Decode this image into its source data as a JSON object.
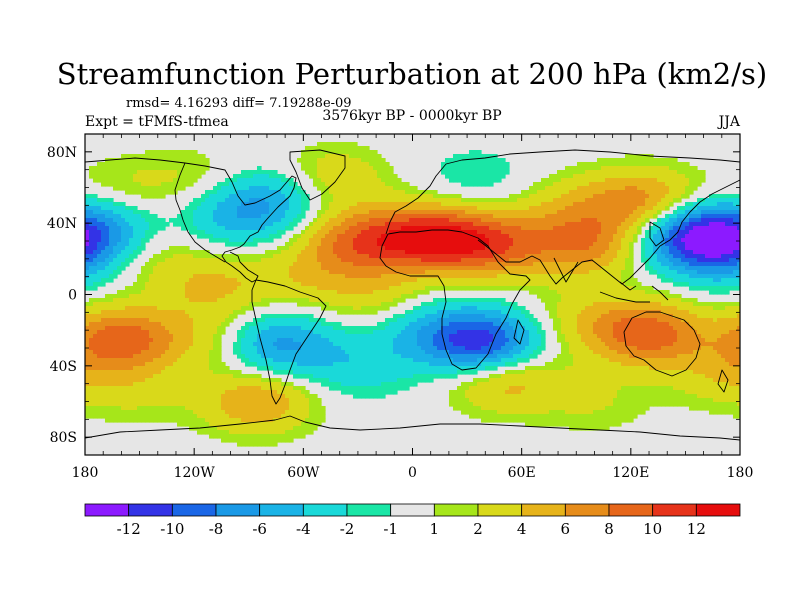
{
  "chart_data": {
    "type": "contour_map",
    "title": "Streamfunction Perturbation at 200 hPa (km2/s)",
    "stats_text": "rmsd= 4.16293 diff= 7.19288e-09",
    "experiment_text": "Expt = tFMfS-tfmea",
    "period_text": "3576kyr BP - 0000kyr BP",
    "season": "JJA",
    "xlim": [
      -180,
      180
    ],
    "ylim": [
      -90,
      90
    ],
    "x_ticks": [
      {
        "value": -180,
        "label": "180"
      },
      {
        "value": -120,
        "label": "120W"
      },
      {
        "value": -60,
        "label": "60W"
      },
      {
        "value": 0,
        "label": "0"
      },
      {
        "value": 60,
        "label": "60E"
      },
      {
        "value": 120,
        "label": "120E"
      },
      {
        "value": 180,
        "label": "180"
      }
    ],
    "y_ticks": [
      {
        "value": 80,
        "label": "80N"
      },
      {
        "value": 40,
        "label": "40N"
      },
      {
        "value": 0,
        "label": "0"
      },
      {
        "value": -40,
        "label": "40S"
      },
      {
        "value": -80,
        "label": "80S"
      }
    ],
    "colorbar": {
      "levels": [
        "-12",
        "-10",
        "-8",
        "-6",
        "-4",
        "-2",
        "-1",
        "1",
        "2",
        "4",
        "6",
        "8",
        "10",
        "12"
      ],
      "colors": [
        "#8c1aff",
        "#3333e6",
        "#1a66e6",
        "#1a99e6",
        "#1ab3e6",
        "#1ad9d9",
        "#1ae6a6",
        "#e6e6e6",
        "#a6e61a",
        "#d9d91a",
        "#e6b31a",
        "#e68c1a",
        "#e6661a",
        "#e6331a",
        "#e60d0d"
      ]
    },
    "field_features": [
      {
        "lon": -30,
        "lat": 30,
        "value": 8
      },
      {
        "lon": 10,
        "lat": 32,
        "value": 11
      },
      {
        "lon": 45,
        "lat": 28,
        "value": 8
      },
      {
        "lon": 95,
        "lat": 28,
        "value": 7
      },
      {
        "lon": 88,
        "lat": 50,
        "value": 3
      },
      {
        "lon": 128,
        "lat": 52,
        "value": 7
      },
      {
        "lon": 155,
        "lat": 33,
        "value": -12
      },
      {
        "lon": 175,
        "lat": 20,
        "value": -4
      },
      {
        "lon": -170,
        "lat": 35,
        "value": -6
      },
      {
        "lon": -150,
        "lat": 23,
        "value": 3
      },
      {
        "lon": -95,
        "lat": 45,
        "value": -5
      },
      {
        "lon": -72,
        "lat": 55,
        "value": -4
      },
      {
        "lon": -45,
        "lat": 65,
        "value": 4
      },
      {
        "lon": -110,
        "lat": 5,
        "value": 4
      },
      {
        "lon": -60,
        "lat": 10,
        "value": 3
      },
      {
        "lon": -20,
        "lat": 0,
        "value": 3
      },
      {
        "lon": -160,
        "lat": -25,
        "value": 9
      },
      {
        "lon": -110,
        "lat": -25,
        "value": 3
      },
      {
        "lon": -75,
        "lat": -28,
        "value": -7
      },
      {
        "lon": -30,
        "lat": -40,
        "value": -3
      },
      {
        "lon": 40,
        "lat": -28,
        "value": -11
      },
      {
        "lon": 10,
        "lat": -20,
        "value": -4
      },
      {
        "lon": 50,
        "lat": -47,
        "value": 6
      },
      {
        "lon": 130,
        "lat": -22,
        "value": 9
      },
      {
        "lon": 95,
        "lat": -15,
        "value": 3
      },
      {
        "lon": 170,
        "lat": -45,
        "value": 3
      },
      {
        "lon": -85,
        "lat": -60,
        "value": 6
      },
      {
        "lon": -150,
        "lat": -55,
        "value": 2
      },
      {
        "lon": 100,
        "lat": -60,
        "value": 2
      },
      {
        "lon": -120,
        "lat": 65,
        "value": 2
      },
      {
        "lon": 35,
        "lat": 65,
        "value": -2
      },
      {
        "lon": -160,
        "lat": 60,
        "value": 2
      }
    ]
  }
}
